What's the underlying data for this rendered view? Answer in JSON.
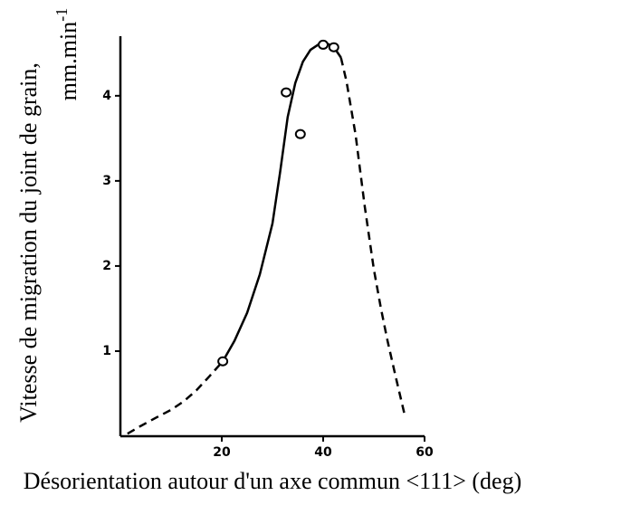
{
  "chart_data": {
    "type": "scatter",
    "xlabel": "Désorientation autour d'un axe commun <111>  (deg)",
    "ylabel": "Vitesse de migration du joint de grain,",
    "ylabel_unit": "mm.min",
    "ylabel_unit_exp": "-1",
    "xlim": [
      0,
      60
    ],
    "ylim": [
      0,
      4.7
    ],
    "xticks": [
      20,
      40,
      60
    ],
    "yticks": [
      1,
      2,
      3,
      4
    ],
    "color": "#000000",
    "points": {
      "x": [
        20.2,
        32.7,
        35.5,
        40,
        42.1
      ],
      "values": [
        0.88,
        4.04,
        3.55,
        4.6,
        4.57
      ]
    },
    "curves": [
      {
        "style": "dashed",
        "x": [
          1.4,
          4,
          7.1,
          10,
          12.5,
          15,
          17.5,
          20.2
        ],
        "values": [
          0.03,
          0.12,
          0.22,
          0.31,
          0.41,
          0.54,
          0.7,
          0.88
        ]
      },
      {
        "style": "solid",
        "x": [
          20.2,
          22.5,
          25,
          27.5,
          30,
          31.5,
          33,
          34.5,
          36,
          37.5,
          39,
          40.5,
          42,
          43.5
        ],
        "values": [
          0.88,
          1.12,
          1.45,
          1.9,
          2.5,
          3.1,
          3.75,
          4.15,
          4.4,
          4.54,
          4.6,
          4.62,
          4.58,
          4.45
        ]
      },
      {
        "style": "dashed",
        "x": [
          43.5,
          44.6,
          46.4,
          48.2,
          50,
          51.4,
          52.7,
          54.3,
          56
        ],
        "values": [
          4.45,
          4.17,
          3.54,
          2.7,
          1.96,
          1.5,
          1.12,
          0.7,
          0.27
        ]
      }
    ]
  }
}
